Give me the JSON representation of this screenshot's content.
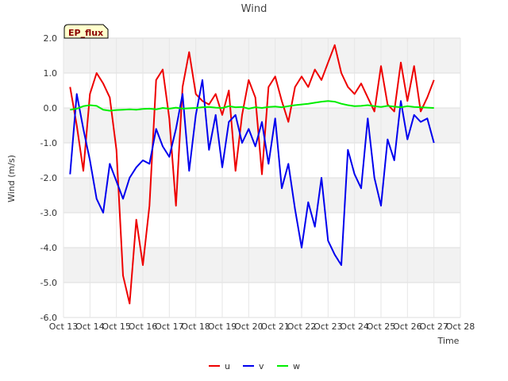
{
  "chart_data": {
    "type": "line",
    "title": "Wind",
    "badge": "EP_flux",
    "xlabel": "Time",
    "ylabel": "Wind (m/s)",
    "ylim": [
      -6,
      2
    ],
    "yticks": [
      2,
      1,
      0,
      -1,
      -2,
      -3,
      -4,
      -5,
      -6
    ],
    "ytick_labels": [
      "2.0",
      "1.0",
      "0.0",
      "-1.0",
      "-2.0",
      "-3.0",
      "-4.0",
      "-5.0",
      "-6.0"
    ],
    "xlim": [
      13,
      28
    ],
    "xticks": [
      13,
      14,
      15,
      16,
      17,
      18,
      19,
      20,
      21,
      22,
      23,
      24,
      25,
      26,
      27,
      28
    ],
    "xtick_labels": [
      "Oct 13",
      "Oct 14",
      "Oct 15",
      "Oct 16",
      "Oct 17",
      "Oct 18",
      "Oct 19",
      "Oct 20",
      "Oct 21",
      "Oct 22",
      "Oct 23",
      "Oct 24",
      "Oct 25",
      "Oct 26",
      "Oct 27",
      "Oct 28"
    ],
    "grid": true,
    "legend_position": "bottom-center",
    "x": [
      13.25,
      13.5,
      13.75,
      14.0,
      14.25,
      14.5,
      14.75,
      15.0,
      15.25,
      15.5,
      15.75,
      16.0,
      16.25,
      16.5,
      16.75,
      17.0,
      17.25,
      17.5,
      17.75,
      18.0,
      18.25,
      18.5,
      18.75,
      19.0,
      19.25,
      19.5,
      19.75,
      20.0,
      20.25,
      20.5,
      20.75,
      21.0,
      21.25,
      21.5,
      21.75,
      22.0,
      22.25,
      22.5,
      22.75,
      23.0,
      23.25,
      23.5,
      23.75,
      24.0,
      24.25,
      24.5,
      24.75,
      25.0,
      25.25,
      25.5,
      25.75,
      26.0,
      26.25,
      26.5,
      26.75,
      27.0
    ],
    "series": [
      {
        "name": "u",
        "color": "#ee0000",
        "values": [
          0.6,
          -0.5,
          -1.8,
          0.4,
          1.0,
          0.7,
          0.3,
          -1.2,
          -4.8,
          -5.6,
          -3.2,
          -4.5,
          -2.8,
          0.8,
          1.1,
          -0.3,
          -2.8,
          0.6,
          1.6,
          0.4,
          0.2,
          0.1,
          0.4,
          -0.2,
          0.5,
          -1.8,
          -0.2,
          0.8,
          0.3,
          -1.9,
          0.6,
          0.9,
          0.2,
          -0.4,
          0.6,
          0.9,
          0.6,
          1.1,
          0.8,
          1.3,
          1.8,
          1.0,
          0.6,
          0.4,
          0.7,
          0.3,
          -0.1,
          1.2,
          0.1,
          -0.1,
          1.3,
          0.2,
          1.2,
          -0.1,
          0.3,
          0.8
        ]
      },
      {
        "name": "v",
        "color": "#0000ee",
        "values": [
          -1.9,
          0.4,
          -0.6,
          -1.5,
          -2.6,
          -3.0,
          -1.6,
          -2.1,
          -2.6,
          -2.0,
          -1.7,
          -1.5,
          -1.6,
          -0.6,
          -1.1,
          -1.4,
          -0.6,
          0.4,
          -1.8,
          -0.2,
          0.8,
          -1.2,
          -0.2,
          -1.7,
          -0.4,
          -0.2,
          -1.0,
          -0.6,
          -1.1,
          -0.4,
          -1.6,
          -0.3,
          -2.3,
          -1.6,
          -2.9,
          -4.0,
          -2.7,
          -3.4,
          -2.0,
          -3.8,
          -4.2,
          -4.5,
          -1.2,
          -1.9,
          -2.3,
          -0.3,
          -2.0,
          -2.8,
          -0.9,
          -1.5,
          0.2,
          -0.9,
          -0.2,
          -0.4,
          -0.3,
          -1.0
        ]
      },
      {
        "name": "w",
        "color": "#00ee00",
        "values": [
          -0.05,
          -0.02,
          0.05,
          0.08,
          0.06,
          -0.05,
          -0.08,
          -0.06,
          -0.05,
          -0.04,
          -0.05,
          -0.03,
          -0.02,
          -0.04,
          0.0,
          -0.02,
          0.01,
          -0.02,
          -0.01,
          0.0,
          0.02,
          0.03,
          0.01,
          0.0,
          0.05,
          0.02,
          0.03,
          -0.02,
          0.02,
          0.0,
          0.03,
          0.04,
          0.02,
          0.05,
          0.08,
          0.1,
          0.12,
          0.15,
          0.18,
          0.2,
          0.18,
          0.12,
          0.08,
          0.05,
          0.06,
          0.08,
          0.05,
          0.03,
          0.06,
          0.04,
          0.02,
          0.05,
          0.03,
          0.02,
          0.01,
          0.0
        ]
      }
    ]
  }
}
